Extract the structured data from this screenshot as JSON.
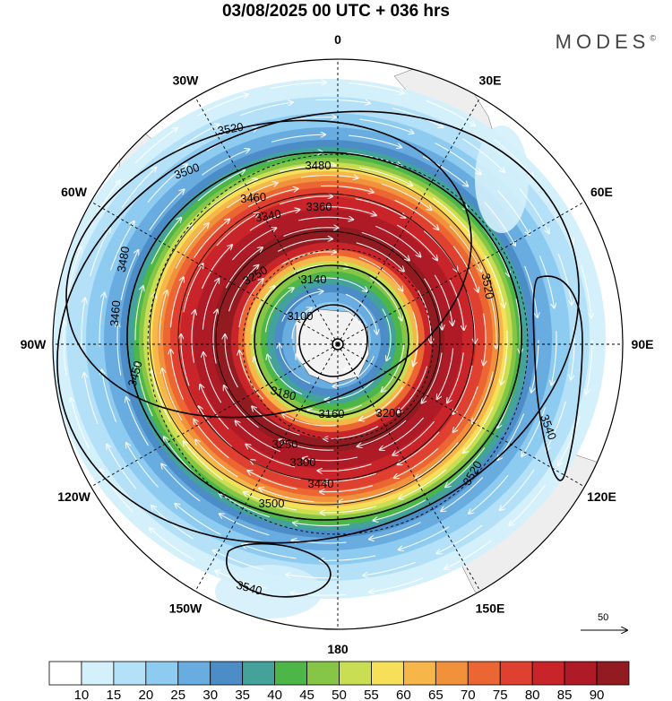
{
  "title": "03/08/2025  00 UTC  + 036 hrs",
  "brand": {
    "text": "MODES",
    "mark": "©"
  },
  "map": {
    "projection": "polar-stereographic-south",
    "lon_labels": [
      {
        "text": "0",
        "lon": 0
      },
      {
        "text": "30E",
        "lon": 30
      },
      {
        "text": "60E",
        "lon": 60
      },
      {
        "text": "90E",
        "lon": 90
      },
      {
        "text": "120E",
        "lon": 120
      },
      {
        "text": "150E",
        "lon": 150
      },
      {
        "text": "180",
        "lon": 180
      },
      {
        "text": "150W",
        "lon": -150
      },
      {
        "text": "120W",
        "lon": -120
      },
      {
        "text": "90W",
        "lon": -90
      },
      {
        "text": "60W",
        "lon": -60
      },
      {
        "text": "30W",
        "lon": -30
      }
    ],
    "contour_labels": [
      "3520",
      "3500",
      "3480",
      "3460",
      "3360",
      "3340",
      "3250",
      "3140",
      "3100",
      "3160",
      "3200",
      "3250",
      "3300",
      "3440",
      "3500",
      "3520",
      "3540",
      "3540",
      "3480",
      "3460",
      "3450",
      "3180",
      "3520"
    ]
  },
  "reference_vector": {
    "label": "50"
  },
  "colorbar": {
    "colors": [
      "#ffffff",
      "#d4f0fb",
      "#b4e1f8",
      "#8ecbf0",
      "#68ace0",
      "#4c8dc8",
      "#43a39a",
      "#4cb648",
      "#86c545",
      "#c9de53",
      "#f6e05a",
      "#f7b64a",
      "#f2913c",
      "#ec6633",
      "#e0402f",
      "#c82429",
      "#ae1a25",
      "#921b22"
    ],
    "labels": [
      "10",
      "15",
      "20",
      "25",
      "30",
      "35",
      "40",
      "45",
      "50",
      "55",
      "60",
      "65",
      "70",
      "75",
      "80",
      "85",
      "90"
    ]
  }
}
